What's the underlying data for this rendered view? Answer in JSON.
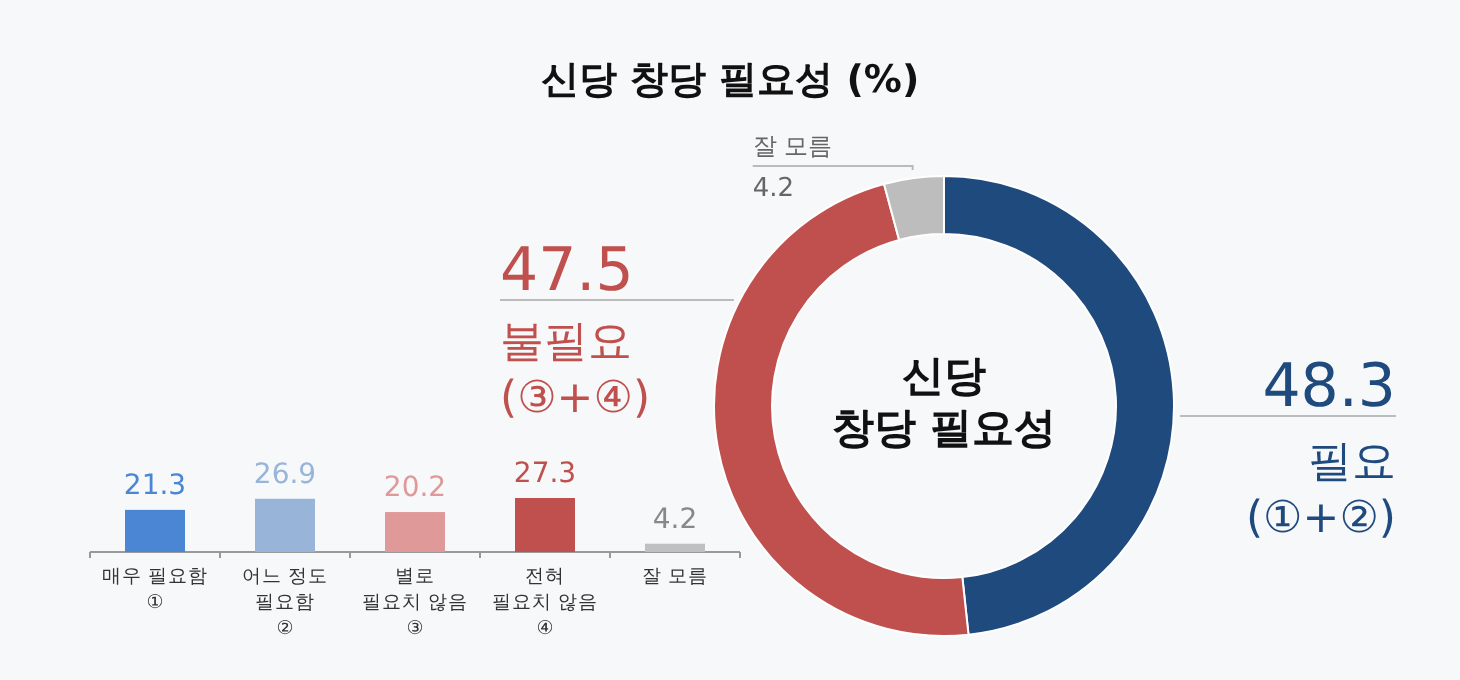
{
  "chart_data": [
    {
      "type": "donut",
      "title": "신당 창당 필요성 (%)",
      "annotations": [
        "신당\n창당 필요성"
      ],
      "categories": [
        "필요\n(①+②)",
        "불필요\n(③+④)",
        "잘 모름"
      ],
      "values": [
        48.3,
        47.5,
        4.2
      ],
      "colors": [
        "#1f4a7e",
        "#c0504d",
        "#bdbdbd"
      ],
      "data_labels": true
    },
    {
      "type": "bar",
      "categories": [
        "매우 필요함\n①",
        "어느 정도\n필요함\n②",
        "별로\n필요치 않음\n③",
        "전혀\n필요치 않음\n④",
        "잘 모름"
      ],
      "values": [
        21.3,
        26.9,
        20.2,
        27.3,
        4.2
      ],
      "colors": [
        "#4a86d4",
        "#98b4d9",
        "#e09999",
        "#c0504d",
        "#c0c0c0"
      ],
      "data_labels": true
    }
  ]
}
